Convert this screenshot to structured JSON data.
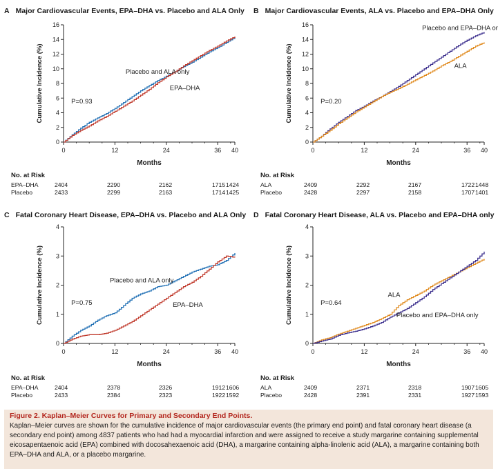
{
  "chart_data": [
    {
      "id": "A",
      "type": "line",
      "letter": "A",
      "title": "Major Cardiovascular Events, EPA–DHA vs. Placebo and ALA Only",
      "xlabel": "Months",
      "ylabel": "Cumulative Incidence (%)",
      "xlim": [
        0,
        40
      ],
      "ylim": [
        0,
        16
      ],
      "xticks": [
        0,
        12,
        24,
        36,
        40
      ],
      "yticks": [
        0,
        2,
        4,
        6,
        8,
        10,
        12,
        14,
        16
      ],
      "annotation": "P=0.93",
      "series": [
        {
          "name": "Placebo and ALA only",
          "color": "#1f6fb4",
          "x": [
            0,
            2,
            4,
            6,
            8,
            10,
            12,
            14,
            16,
            18,
            20,
            22,
            24,
            26,
            28,
            30,
            32,
            34,
            36,
            38,
            40
          ],
          "y": [
            0,
            1.0,
            1.9,
            2.7,
            3.3,
            3.9,
            4.6,
            5.4,
            6.2,
            7.0,
            7.7,
            8.4,
            9.0,
            9.6,
            10.3,
            10.9,
            11.6,
            12.3,
            12.9,
            13.6,
            14.3
          ]
        },
        {
          "name": "EPA–DHA",
          "color": "#c0392b",
          "x": [
            0,
            2,
            4,
            6,
            8,
            10,
            12,
            14,
            16,
            18,
            20,
            22,
            24,
            26,
            28,
            30,
            32,
            34,
            36,
            38,
            40
          ],
          "y": [
            0,
            0.9,
            1.6,
            2.2,
            2.9,
            3.5,
            4.2,
            4.9,
            5.6,
            6.4,
            7.2,
            8.1,
            8.9,
            9.6,
            10.4,
            11.1,
            11.8,
            12.5,
            13.1,
            13.8,
            14.4
          ]
        }
      ],
      "series_labels": [
        {
          "text": "Placebo and ALA only",
          "x": 14.5,
          "y": 9.3
        },
        {
          "text": "EPA–DHA",
          "x": 24.8,
          "y": 7.1
        }
      ],
      "risk": {
        "header": "No. at Risk",
        "rows": [
          {
            "label": "EPA–DHA",
            "values": [
              "2404",
              "2290",
              "2162",
              "1715",
              "1424"
            ]
          },
          {
            "label": "Placebo",
            "values": [
              "2433",
              "2299",
              "2163",
              "1714",
              "1425"
            ]
          }
        ]
      }
    },
    {
      "id": "B",
      "type": "line",
      "letter": "B",
      "title": "Major Cardiovascular Events, ALA vs. Placebo and EPA–DHA Only",
      "xlabel": "Months",
      "ylabel": "Cumulative Incidence (%)",
      "xlim": [
        0,
        40
      ],
      "ylim": [
        0,
        16
      ],
      "xticks": [
        0,
        12,
        24,
        36,
        40
      ],
      "yticks": [
        0,
        2,
        4,
        6,
        8,
        10,
        12,
        14,
        16
      ],
      "annotation": "P=0.20",
      "series": [
        {
          "name": "Placebo and EPA–DHA only",
          "color": "#3a2d8c",
          "x": [
            0,
            2,
            4,
            6,
            8,
            10,
            12,
            14,
            16,
            18,
            20,
            22,
            24,
            26,
            28,
            30,
            32,
            34,
            36,
            38,
            40
          ],
          "y": [
            0,
            0.8,
            1.8,
            2.7,
            3.5,
            4.3,
            4.9,
            5.6,
            6.2,
            6.9,
            7.6,
            8.4,
            9.2,
            10.0,
            10.8,
            11.6,
            12.4,
            13.2,
            13.9,
            14.5,
            15.0
          ]
        },
        {
          "name": "ALA",
          "color": "#e08a1e",
          "x": [
            0,
            2,
            4,
            6,
            8,
            10,
            12,
            14,
            16,
            18,
            20,
            22,
            24,
            26,
            28,
            30,
            32,
            34,
            36,
            38,
            40
          ],
          "y": [
            0,
            0.8,
            1.6,
            2.5,
            3.3,
            4.1,
            4.8,
            5.5,
            6.2,
            6.8,
            7.3,
            7.9,
            8.5,
            9.1,
            9.7,
            10.4,
            11.0,
            11.7,
            12.4,
            13.1,
            13.6
          ]
        }
      ],
      "series_labels": [
        {
          "text": "Placebo and EPA–DHA only",
          "x": 25.5,
          "y": 15.3
        },
        {
          "text": "ALA",
          "x": 33,
          "y": 10.1
        }
      ],
      "risk": {
        "header": "No. at Risk",
        "rows": [
          {
            "label": "ALA",
            "values": [
              "2409",
              "2292",
              "2167",
              "1722",
              "1448"
            ]
          },
          {
            "label": "Placebo",
            "values": [
              "2428",
              "2297",
              "2158",
              "1707",
              "1401"
            ]
          }
        ]
      }
    },
    {
      "id": "C",
      "type": "line",
      "letter": "C",
      "title": "Fatal Coronary Heart Disease, EPA–DHA vs. Placebo and ALA Only",
      "xlabel": "Months",
      "ylabel": "Cumulative Incidence (%)",
      "xlim": [
        0,
        40
      ],
      "ylim": [
        0,
        4
      ],
      "xticks": [
        0,
        12,
        24,
        36,
        40
      ],
      "yticks": [
        0,
        1,
        2,
        3,
        4
      ],
      "annotation": "P=0.75",
      "series": [
        {
          "name": "Placebo and ALA only",
          "color": "#1f6fb4",
          "x": [
            0,
            2,
            4,
            6,
            8,
            10,
            12,
            14,
            16,
            18,
            20,
            22,
            24,
            26,
            28,
            30,
            32,
            34,
            36,
            38,
            40
          ],
          "y": [
            0,
            0.25,
            0.45,
            0.6,
            0.8,
            0.95,
            1.05,
            1.3,
            1.55,
            1.7,
            1.8,
            1.95,
            2.0,
            2.15,
            2.3,
            2.45,
            2.55,
            2.65,
            2.7,
            2.85,
            3.1
          ]
        },
        {
          "name": "EPA–DHA",
          "color": "#c0392b",
          "x": [
            0,
            2,
            4,
            6,
            8,
            10,
            12,
            14,
            16,
            18,
            20,
            22,
            24,
            26,
            28,
            30,
            32,
            34,
            36,
            38,
            40
          ],
          "y": [
            0,
            0.15,
            0.25,
            0.3,
            0.3,
            0.35,
            0.45,
            0.6,
            0.75,
            0.95,
            1.15,
            1.35,
            1.55,
            1.75,
            1.95,
            2.1,
            2.3,
            2.55,
            2.8,
            3.0,
            2.95
          ]
        }
      ],
      "series_labels": [
        {
          "text": "Placebo and ALA only",
          "x": 10.8,
          "y": 2.1
        },
        {
          "text": "EPA–DHA",
          "x": 25.5,
          "y": 1.25
        }
      ],
      "risk": {
        "header": "No. at Risk",
        "rows": [
          {
            "label": "EPA–DHA",
            "values": [
              "2404",
              "2378",
              "2326",
              "1912",
              "1606"
            ]
          },
          {
            "label": "Placebo",
            "values": [
              "2433",
              "2384",
              "2323",
              "1922",
              "1592"
            ]
          }
        ]
      }
    },
    {
      "id": "D",
      "type": "line",
      "letter": "D",
      "title": "Fatal Coronary Heart Disease, ALA vs. Placebo and EPA–DHA only",
      "xlabel": "Months",
      "ylabel": "Cumulative Incidence (%)",
      "xlim": [
        0,
        40
      ],
      "ylim": [
        0,
        4
      ],
      "xticks": [
        0,
        12,
        24,
        36,
        40
      ],
      "yticks": [
        0,
        1,
        2,
        3,
        4
      ],
      "annotation": "P=0.64",
      "series": [
        {
          "name": "ALA",
          "color": "#e08a1e",
          "x": [
            0,
            2,
            4,
            6,
            8,
            10,
            12,
            14,
            16,
            18,
            20,
            22,
            24,
            26,
            28,
            30,
            32,
            34,
            36,
            38,
            40
          ],
          "y": [
            0,
            0.12,
            0.2,
            0.32,
            0.42,
            0.52,
            0.62,
            0.72,
            0.85,
            1.0,
            1.3,
            1.5,
            1.65,
            1.8,
            2.0,
            2.15,
            2.3,
            2.45,
            2.6,
            2.75,
            2.9
          ]
        },
        {
          "name": "Placebo and EPA–DHA only",
          "color": "#3a2d8c",
          "x": [
            0,
            2,
            4,
            6,
            8,
            10,
            12,
            14,
            16,
            18,
            20,
            22,
            24,
            26,
            28,
            30,
            32,
            34,
            36,
            38,
            40
          ],
          "y": [
            0,
            0.08,
            0.15,
            0.28,
            0.36,
            0.42,
            0.5,
            0.6,
            0.72,
            0.9,
            1.05,
            1.2,
            1.4,
            1.6,
            1.85,
            2.05,
            2.25,
            2.45,
            2.65,
            2.85,
            3.15
          ]
        }
      ],
      "series_labels": [
        {
          "text": "ALA",
          "x": 17.5,
          "y": 1.6
        },
        {
          "text": "Placebo and EPA–DHA only",
          "x": 19.5,
          "y": 0.9
        }
      ],
      "risk": {
        "header": "No. at Risk",
        "rows": [
          {
            "label": "ALA",
            "values": [
              "2409",
              "2371",
              "2318",
              "1907",
              "1605"
            ]
          },
          {
            "label": "Placebo",
            "values": [
              "2428",
              "2391",
              "2331",
              "1927",
              "1593"
            ]
          }
        ]
      }
    }
  ],
  "caption": {
    "title": "Figure 2. Kaplan–Meier Curves for Primary and Secondary End Points.",
    "text": "Kaplan–Meier curves are shown for the cumulative incidence of major cardiovascular events (the primary end point) and fatal coronary heart disease (a secondary end point) among 4837 patients who had had a myocardial infarction and were assigned to receive a study margarine containing supplemental eicosapentaenoic acid (EPA) combined with docosahexaenoic acid (DHA), a margarine containing alpha-linolenic acid (ALA), a margarine containing both EPA–DHA and ALA, or a placebo margarine."
  }
}
